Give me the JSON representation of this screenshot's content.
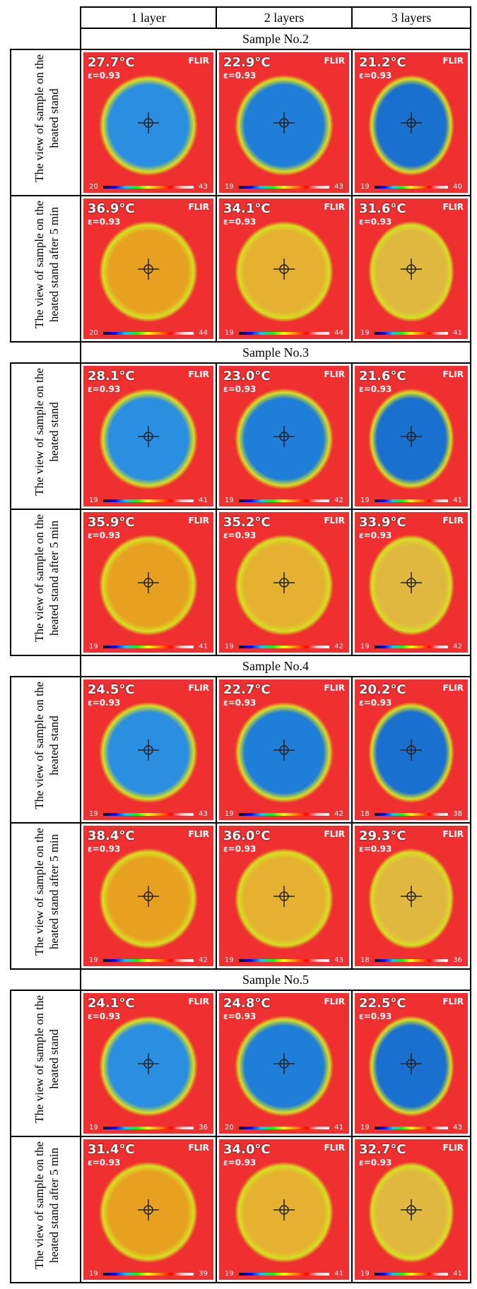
{
  "header": {
    "columns": [
      "1 layer",
      "2 layers",
      "3 layers"
    ]
  },
  "camera": {
    "brand": "FLIR",
    "emissivity": "ε=0.93"
  },
  "samples": [
    {
      "label": "Sample No.2",
      "rows": [
        {
          "label": "The view of sample on the heated stand",
          "cells": [
            {
              "temp": "27.7°C",
              "min": "20",
              "max": "43"
            },
            {
              "temp": "22.9°C",
              "min": "19",
              "max": "43"
            },
            {
              "temp": "21.2°C",
              "min": "19",
              "max": "40"
            }
          ]
        },
        {
          "label": "The view of sample on the heated stand after 5 min",
          "cells": [
            {
              "temp": "36.9°C",
              "min": "20",
              "max": "44"
            },
            {
              "temp": "34.1°C",
              "min": "19",
              "max": "44"
            },
            {
              "temp": "31.6°C",
              "min": "19",
              "max": "41"
            }
          ]
        }
      ]
    },
    {
      "label": "Sample No.3",
      "rows": [
        {
          "label": "The view of sample on the heated stand",
          "cells": [
            {
              "temp": "28.1°C",
              "min": "19",
              "max": "41"
            },
            {
              "temp": "23.0°C",
              "min": "19",
              "max": "42"
            },
            {
              "temp": "21.6°C",
              "min": "19",
              "max": "41"
            }
          ]
        },
        {
          "label": "The view of sample on the heated stand after 5 min",
          "cells": [
            {
              "temp": "35.9°C",
              "min": "19",
              "max": "41"
            },
            {
              "temp": "35.2°C",
              "min": "19",
              "max": "42"
            },
            {
              "temp": "33.9°C",
              "min": "19",
              "max": "42"
            }
          ]
        }
      ]
    },
    {
      "label": "Sample No.4",
      "rows": [
        {
          "label": "The view of sample on the heated stand",
          "cells": [
            {
              "temp": "24.5°C",
              "min": "19",
              "max": "43"
            },
            {
              "temp": "22.7°C",
              "min": "19",
              "max": "42"
            },
            {
              "temp": "20.2°C",
              "min": "18",
              "max": "38"
            }
          ]
        },
        {
          "label": "The view of sample on the heated stand after 5 min",
          "cells": [
            {
              "temp": "38.4°C",
              "min": "19",
              "max": "42"
            },
            {
              "temp": "36.0°C",
              "min": "19",
              "max": "43"
            },
            {
              "temp": "29.3°C",
              "min": "18",
              "max": "36"
            }
          ]
        }
      ]
    },
    {
      "label": "Sample No.5",
      "rows": [
        {
          "label": "The view of sample on the heated stand",
          "cells": [
            {
              "temp": "24.1°C",
              "min": "19",
              "max": "36"
            },
            {
              "temp": "24.8°C",
              "min": "20",
              "max": "41"
            },
            {
              "temp": "22.5°C",
              "min": "19",
              "max": "43"
            }
          ]
        },
        {
          "label": "The view of sample on the heated stand after 5 min",
          "cells": [
            {
              "temp": "31.4°C",
              "min": "19",
              "max": "39"
            },
            {
              "temp": "34.0°C",
              "min": "19",
              "max": "41"
            },
            {
              "temp": "32.7°C",
              "min": "19",
              "max": "41"
            }
          ]
        }
      ]
    }
  ]
}
